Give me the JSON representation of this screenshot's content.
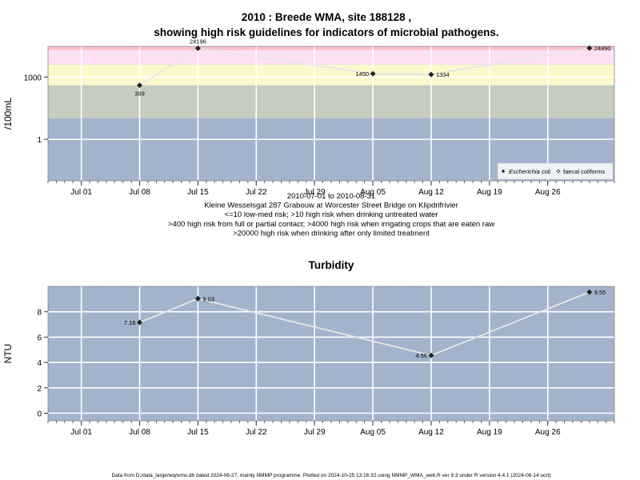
{
  "chart_data": [
    {
      "type": "line",
      "title_line1": "2010 : Breede WMA, site 188128 ,",
      "title_line2": "showing high risk guidelines for indicators of microbial pathogens.",
      "ylabel": "/100mL",
      "yscale": "log10",
      "ylim": [
        0.01,
        30000
      ],
      "yticks": [
        {
          "value": 1,
          "label": "1"
        },
        {
          "value": 1000,
          "label": "1000"
        }
      ],
      "xlim": [
        "2010-06-27",
        "2010-09-03"
      ],
      "xticks": [
        {
          "date": "2010-07-01",
          "label": "Jul 01"
        },
        {
          "date": "2010-07-08",
          "label": "Jul 08"
        },
        {
          "date": "2010-07-15",
          "label": "Jul 15"
        },
        {
          "date": "2010-07-22",
          "label": "Jul 22"
        },
        {
          "date": "2010-07-29",
          "label": "Jul 29"
        },
        {
          "date": "2010-08-05",
          "label": "Aug 05"
        },
        {
          "date": "2010-08-12",
          "label": "Aug 12"
        },
        {
          "date": "2010-08-19",
          "label": "Aug 19"
        },
        {
          "date": "2010-08-26",
          "label": "Aug 26"
        }
      ],
      "bands": [
        {
          "from": 0.01,
          "to": 10,
          "color": "#a3b3cc"
        },
        {
          "from": 10,
          "to": 400,
          "color": "#c5cdc0"
        },
        {
          "from": 400,
          "to": 4000,
          "color": "#fdf8cc"
        },
        {
          "from": 4000,
          "to": 20000,
          "color": "#fde0f5"
        },
        {
          "from": 20000,
          "to": 30000,
          "color": "#fcc0cc"
        }
      ],
      "series": [
        {
          "name": "Escherichia coli",
          "points": [
            {
              "date": "2010-07-08",
              "value": 399,
              "label": "399",
              "label_pos": "below"
            },
            {
              "date": "2010-07-15",
              "value": 24196,
              "label": "24196",
              "label_pos": "above"
            },
            {
              "date": "2010-08-05",
              "value": 1450,
              "label": "1450",
              "label_pos": "left"
            },
            {
              "date": "2010-08-12",
              "value": 1334,
              "label": "1334",
              "label_pos": "right"
            },
            {
              "date": "2010-08-31",
              "value": 24890,
              "label": "24890",
              "label_pos": "right"
            }
          ]
        }
      ],
      "legend": {
        "position": "bottom-right",
        "entries": [
          "Escherichia coli",
          "faecal coliforms"
        ]
      },
      "notes": [
        "2010-07-01 to 2010-08-31",
        "Kleine Wesselsgat 287 Grabouw at Worcester Street Bridge on Klipdrifrivier",
        "<=10 low-med risk; >10 high risk when drinking untreated water",
        ">400 high risk from full or partial contact; >4000 high risk when irrigating crops that are eaten raw",
        ">20000 high risk when drinking after only limited treatment"
      ],
      "grid": true,
      "background": "#a3b3cc"
    },
    {
      "type": "line",
      "title": "Turbidity",
      "ylabel": "NTU",
      "ylim": [
        -0.6,
        10
      ],
      "yticks": [
        {
          "value": 0,
          "label": "0"
        },
        {
          "value": 2,
          "label": "2"
        },
        {
          "value": 4,
          "label": "4"
        },
        {
          "value": 6,
          "label": "6"
        },
        {
          "value": 8,
          "label": "8"
        }
      ],
      "xlim": [
        "2010-06-27",
        "2010-09-03"
      ],
      "xticks": [
        {
          "date": "2010-07-01",
          "label": "Jul 01"
        },
        {
          "date": "2010-07-08",
          "label": "Jul 08"
        },
        {
          "date": "2010-07-15",
          "label": "Jul 15"
        },
        {
          "date": "2010-07-22",
          "label": "Jul 22"
        },
        {
          "date": "2010-07-29",
          "label": "Jul 29"
        },
        {
          "date": "2010-08-05",
          "label": "Aug 05"
        },
        {
          "date": "2010-08-12",
          "label": "Aug 12"
        },
        {
          "date": "2010-08-19",
          "label": "Aug 19"
        },
        {
          "date": "2010-08-26",
          "label": "Aug 26"
        }
      ],
      "series": [
        {
          "points": [
            {
              "date": "2010-07-08",
              "value": 7.16,
              "label": "7.16",
              "label_pos": "left"
            },
            {
              "date": "2010-07-15",
              "value": 9.03,
              "label": "9.03",
              "label_pos": "right"
            },
            {
              "date": "2010-08-12",
              "value": 4.56,
              "label": "4.56",
              "label_pos": "left"
            },
            {
              "date": "2010-08-31",
              "value": 9.55,
              "label": "9.55",
              "label_pos": "right"
            }
          ]
        }
      ],
      "grid": true,
      "background": "#a3b3cc"
    }
  ],
  "footer": "Data from D:/data_large/wq/wms.db dated 2024-08-27, mainly NMMP programme. Plotted on 2024-10-25 13:16:32 using NMMP_WMA_web.R ver 9.3 under R version 4.4.1 (2024-06-14 ucrt)"
}
